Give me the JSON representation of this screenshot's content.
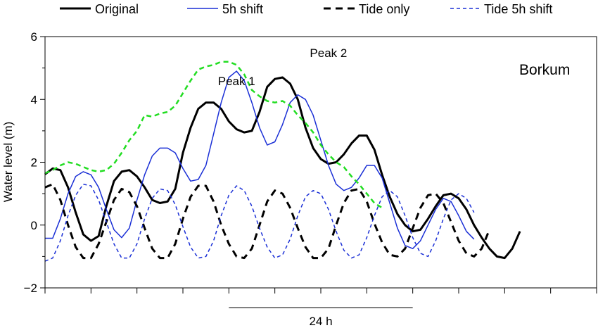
{
  "chart_data": {
    "type": "line",
    "title": "",
    "xlabel": "",
    "ylabel": "Water level (m)",
    "ylim": [
      -2,
      6
    ],
    "yticks": [
      -2,
      0,
      2,
      4,
      6
    ],
    "xlim": [
      0,
      72
    ],
    "x_unit": "hours (approx.)",
    "grid": false,
    "legend_position": "top",
    "station_label": "Borkum",
    "scale_bar": {
      "label": "24 h",
      "from": 24,
      "to": 48
    },
    "annotations": [
      {
        "text": "Peak 1",
        "x": 25,
        "y": 4.45
      },
      {
        "text": "Peak 2",
        "x": 37,
        "y": 5.35
      }
    ],
    "series": [
      {
        "name": "Original",
        "color": "#000000",
        "style": "solid-bold",
        "points": [
          [
            0,
            1.62
          ],
          [
            1,
            1.8
          ],
          [
            2,
            1.75
          ],
          [
            3,
            1.2
          ],
          [
            4,
            0.4
          ],
          [
            5,
            -0.3
          ],
          [
            6,
            -0.5
          ],
          [
            7,
            -0.35
          ],
          [
            8,
            0.6
          ],
          [
            9,
            1.4
          ],
          [
            10,
            1.7
          ],
          [
            11,
            1.75
          ],
          [
            12,
            1.55
          ],
          [
            13,
            1.2
          ],
          [
            14,
            0.8
          ],
          [
            15,
            0.7
          ],
          [
            16,
            0.75
          ],
          [
            17,
            1.15
          ],
          [
            18,
            2.3
          ],
          [
            19,
            3.1
          ],
          [
            20,
            3.7
          ],
          [
            21,
            3.9
          ],
          [
            22,
            3.9
          ],
          [
            23,
            3.7
          ],
          [
            24,
            3.3
          ],
          [
            25,
            3.05
          ],
          [
            26,
            2.95
          ],
          [
            27,
            3.0
          ],
          [
            28,
            3.6
          ],
          [
            29,
            4.4
          ],
          [
            30,
            4.65
          ],
          [
            31,
            4.7
          ],
          [
            32,
            4.5
          ],
          [
            33,
            4.0
          ],
          [
            34,
            3.1
          ],
          [
            35,
            2.45
          ],
          [
            36,
            2.1
          ],
          [
            37,
            1.95
          ],
          [
            38,
            2.0
          ],
          [
            39,
            2.25
          ],
          [
            40,
            2.6
          ],
          [
            41,
            2.85
          ],
          [
            42,
            2.85
          ],
          [
            43,
            2.4
          ],
          [
            44,
            1.6
          ],
          [
            45,
            0.9
          ],
          [
            46,
            0.35
          ],
          [
            47,
            0.0
          ],
          [
            48,
            -0.2
          ],
          [
            49,
            -0.15
          ],
          [
            50,
            0.2
          ],
          [
            51,
            0.6
          ],
          [
            52,
            0.95
          ],
          [
            53,
            1.0
          ],
          [
            54,
            0.85
          ],
          [
            55,
            0.5
          ],
          [
            56,
            0.0
          ],
          [
            57,
            -0.4
          ],
          [
            58,
            -0.75
          ],
          [
            59,
            -1.0
          ],
          [
            60,
            -1.05
          ],
          [
            61,
            -0.75
          ],
          [
            62,
            -0.2
          ]
        ]
      },
      {
        "name": "5h shift",
        "color": "#1a2fd6",
        "style": "solid",
        "points": [
          [
            0,
            -0.42
          ],
          [
            1,
            -0.42
          ],
          [
            2,
            0.2
          ],
          [
            3,
            1.0
          ],
          [
            4,
            1.55
          ],
          [
            5,
            1.7
          ],
          [
            6,
            1.6
          ],
          [
            7,
            1.2
          ],
          [
            8,
            0.5
          ],
          [
            9,
            -0.15
          ],
          [
            10,
            -0.4
          ],
          [
            11,
            -0.1
          ],
          [
            12,
            0.8
          ],
          [
            13,
            1.6
          ],
          [
            14,
            2.2
          ],
          [
            15,
            2.45
          ],
          [
            16,
            2.45
          ],
          [
            17,
            2.3
          ],
          [
            18,
            1.8
          ],
          [
            19,
            1.4
          ],
          [
            20,
            1.45
          ],
          [
            21,
            1.9
          ],
          [
            22,
            2.9
          ],
          [
            23,
            3.9
          ],
          [
            24,
            4.7
          ],
          [
            25,
            4.9
          ],
          [
            26,
            4.6
          ],
          [
            27,
            3.9
          ],
          [
            28,
            3.1
          ],
          [
            29,
            2.55
          ],
          [
            30,
            2.65
          ],
          [
            31,
            3.2
          ],
          [
            32,
            3.9
          ],
          [
            33,
            4.15
          ],
          [
            34,
            4.0
          ],
          [
            35,
            3.5
          ],
          [
            36,
            2.7
          ],
          [
            37,
            1.9
          ],
          [
            38,
            1.3
          ],
          [
            39,
            1.1
          ],
          [
            40,
            1.2
          ],
          [
            41,
            1.5
          ],
          [
            42,
            1.9
          ],
          [
            43,
            1.9
          ],
          [
            44,
            1.5
          ],
          [
            45,
            0.7
          ],
          [
            46,
            -0.1
          ],
          [
            47,
            -0.65
          ],
          [
            48,
            -0.75
          ],
          [
            49,
            -0.5
          ],
          [
            50,
            0.0
          ],
          [
            51,
            0.5
          ],
          [
            52,
            0.85
          ],
          [
            53,
            0.75
          ],
          [
            54,
            0.3
          ],
          [
            55,
            -0.2
          ],
          [
            56,
            -0.45
          ]
        ]
      },
      {
        "name": "Tide only",
        "color": "#000000",
        "style": "dashed-bold",
        "points": [
          [
            0,
            1.2
          ],
          [
            1,
            1.3
          ],
          [
            2,
            0.8
          ],
          [
            3,
            0.0
          ],
          [
            4,
            -0.7
          ],
          [
            5,
            -1.05
          ],
          [
            6,
            -1.05
          ],
          [
            7,
            -0.6
          ],
          [
            8,
            0.1
          ],
          [
            9,
            0.8
          ],
          [
            10,
            1.15
          ],
          [
            11,
            1.05
          ],
          [
            12,
            0.6
          ],
          [
            13,
            -0.1
          ],
          [
            14,
            -0.75
          ],
          [
            15,
            -1.05
          ],
          [
            16,
            -1.05
          ],
          [
            17,
            -0.6
          ],
          [
            18,
            0.2
          ],
          [
            19,
            0.9
          ],
          [
            20,
            1.25
          ],
          [
            21,
            1.25
          ],
          [
            22,
            0.75
          ],
          [
            23,
            0.0
          ],
          [
            24,
            -0.6
          ],
          [
            25,
            -1.0
          ],
          [
            26,
            -1.05
          ],
          [
            27,
            -0.75
          ],
          [
            28,
            0.0
          ],
          [
            29,
            0.75
          ],
          [
            30,
            1.1
          ],
          [
            31,
            1.0
          ],
          [
            32,
            0.55
          ],
          [
            33,
            -0.1
          ],
          [
            34,
            -0.7
          ],
          [
            35,
            -1.05
          ],
          [
            36,
            -1.05
          ],
          [
            37,
            -0.75
          ],
          [
            38,
            0.0
          ],
          [
            39,
            0.7
          ],
          [
            40,
            1.1
          ],
          [
            41,
            1.15
          ],
          [
            42,
            0.75
          ],
          [
            43,
            0.05
          ],
          [
            44,
            -0.55
          ],
          [
            45,
            -0.95
          ],
          [
            46,
            -1.0
          ],
          [
            47,
            -0.75
          ],
          [
            48,
            -0.1
          ],
          [
            49,
            0.55
          ],
          [
            50,
            0.95
          ],
          [
            51,
            1.0
          ],
          [
            52,
            0.7
          ],
          [
            53,
            0.1
          ],
          [
            54,
            -0.5
          ],
          [
            55,
            -0.9
          ],
          [
            56,
            -1.0
          ],
          [
            57,
            -0.75
          ],
          [
            58,
            -0.15
          ]
        ]
      },
      {
        "name": "Tide 5h shift",
        "color": "#1a2fd6",
        "style": "dashed",
        "points": [
          [
            0,
            -1.15
          ],
          [
            1,
            -1.05
          ],
          [
            2,
            -0.5
          ],
          [
            3,
            0.3
          ],
          [
            4,
            0.95
          ],
          [
            5,
            1.3
          ],
          [
            6,
            1.25
          ],
          [
            7,
            0.8
          ],
          [
            8,
            0.1
          ],
          [
            9,
            -0.6
          ],
          [
            10,
            -1.05
          ],
          [
            11,
            -1.05
          ],
          [
            12,
            -0.6
          ],
          [
            13,
            0.2
          ],
          [
            14,
            0.85
          ],
          [
            15,
            1.15
          ],
          [
            16,
            1.1
          ],
          [
            17,
            0.65
          ],
          [
            18,
            -0.05
          ],
          [
            19,
            -0.7
          ],
          [
            20,
            -1.05
          ],
          [
            21,
            -1.0
          ],
          [
            22,
            -0.5
          ],
          [
            23,
            0.3
          ],
          [
            24,
            0.95
          ],
          [
            25,
            1.25
          ],
          [
            26,
            1.1
          ],
          [
            27,
            0.6
          ],
          [
            28,
            -0.1
          ],
          [
            29,
            -0.7
          ],
          [
            30,
            -1.05
          ],
          [
            31,
            -0.95
          ],
          [
            32,
            -0.45
          ],
          [
            33,
            0.3
          ],
          [
            34,
            0.9
          ],
          [
            35,
            1.1
          ],
          [
            36,
            1.0
          ],
          [
            37,
            0.5
          ],
          [
            38,
            -0.2
          ],
          [
            39,
            -0.8
          ],
          [
            40,
            -1.05
          ],
          [
            41,
            -0.95
          ],
          [
            42,
            -0.4
          ],
          [
            43,
            0.3
          ],
          [
            44,
            0.9
          ],
          [
            45,
            1.1
          ],
          [
            46,
            0.9
          ],
          [
            47,
            0.3
          ],
          [
            48,
            -0.4
          ],
          [
            49,
            -0.9
          ],
          [
            50,
            -1.0
          ],
          [
            51,
            -0.5
          ],
          [
            52,
            0.2
          ],
          [
            53,
            0.8
          ],
          [
            54,
            1.0
          ],
          [
            55,
            0.85
          ],
          [
            56,
            0.4
          ]
        ]
      },
      {
        "name": "",
        "color": "#22dd22",
        "style": "dashed-green",
        "points": [
          [
            0,
            1.65
          ],
          [
            1,
            1.75
          ],
          [
            2,
            1.9
          ],
          [
            3,
            2.0
          ],
          [
            4,
            1.95
          ],
          [
            5,
            1.85
          ],
          [
            6,
            1.75
          ],
          [
            7,
            1.7
          ],
          [
            8,
            1.75
          ],
          [
            9,
            1.95
          ],
          [
            10,
            2.3
          ],
          [
            11,
            2.7
          ],
          [
            12,
            3.0
          ],
          [
            13,
            3.5
          ],
          [
            14,
            3.45
          ],
          [
            15,
            3.55
          ],
          [
            16,
            3.6
          ],
          [
            17,
            3.8
          ],
          [
            18,
            4.2
          ],
          [
            19,
            4.6
          ],
          [
            20,
            4.95
          ],
          [
            21,
            5.05
          ],
          [
            22,
            5.1
          ],
          [
            23,
            5.2
          ],
          [
            24,
            5.2
          ],
          [
            25,
            5.1
          ],
          [
            26,
            4.8
          ],
          [
            27,
            4.3
          ],
          [
            28,
            4.1
          ],
          [
            29,
            3.95
          ],
          [
            30,
            3.9
          ],
          [
            31,
            3.95
          ],
          [
            32,
            3.8
          ],
          [
            33,
            3.5
          ],
          [
            34,
            3.25
          ],
          [
            35,
            2.95
          ],
          [
            36,
            2.55
          ],
          [
            37,
            2.25
          ],
          [
            38,
            2.0
          ],
          [
            39,
            1.85
          ],
          [
            40,
            1.55
          ],
          [
            41,
            1.3
          ],
          [
            42,
            1.0
          ],
          [
            43,
            0.7
          ],
          [
            44,
            0.55
          ]
        ]
      }
    ]
  }
}
